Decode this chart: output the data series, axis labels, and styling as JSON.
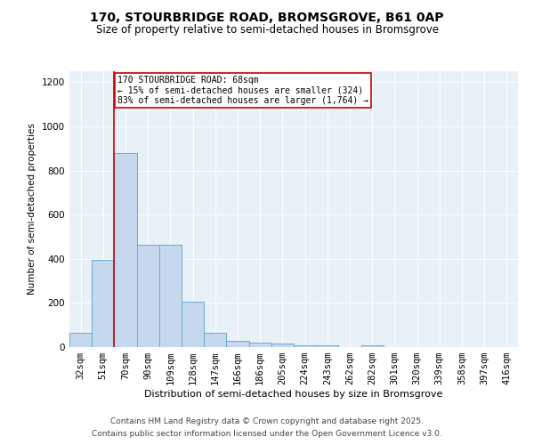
{
  "title_line1": "170, STOURBRIDGE ROAD, BROMSGROVE, B61 0AP",
  "title_line2": "Size of property relative to semi-detached houses in Bromsgrove",
  "xlabel": "Distribution of semi-detached houses by size in Bromsgrove",
  "ylabel": "Number of semi-detached properties",
  "categories": [
    "32sqm",
    "51sqm",
    "70sqm",
    "90sqm",
    "109sqm",
    "128sqm",
    "147sqm",
    "166sqm",
    "186sqm",
    "205sqm",
    "224sqm",
    "243sqm",
    "262sqm",
    "282sqm",
    "301sqm",
    "320sqm",
    "339sqm",
    "358sqm",
    "397sqm",
    "416sqm"
  ],
  "values": [
    65,
    395,
    880,
    465,
    465,
    205,
    65,
    30,
    20,
    15,
    10,
    8,
    0,
    10,
    0,
    0,
    0,
    0,
    0,
    0
  ],
  "bar_color": "#c5d8ed",
  "bar_edge_color": "#6aabd2",
  "red_line_index": 2,
  "annotation_title": "170 STOURBRIDGE ROAD: 68sqm",
  "annotation_line2": "← 15% of semi-detached houses are smaller (324)",
  "annotation_line3": "83% of semi-detached houses are larger (1,764) →",
  "annotation_box_color": "#ffffff",
  "annotation_box_edge": "#cc0000",
  "red_line_color": "#cc0000",
  "ylim": [
    0,
    1250
  ],
  "yticks": [
    0,
    200,
    400,
    600,
    800,
    1000,
    1200
  ],
  "background_color": "#e8f0f8",
  "footer_line1": "Contains HM Land Registry data © Crown copyright and database right 2025.",
  "footer_line2": "Contains public sector information licensed under the Open Government Licence v3.0."
}
